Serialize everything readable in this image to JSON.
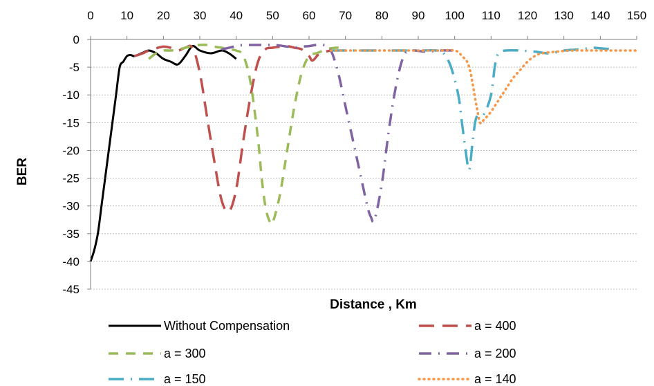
{
  "chart_data": {
    "type": "line",
    "title": "",
    "xlabel": "Distance , Km",
    "ylabel": "BER",
    "xlim": [
      0,
      150
    ],
    "ylim": [
      -45,
      0
    ],
    "xticks": [
      0,
      10,
      20,
      30,
      40,
      50,
      60,
      70,
      80,
      90,
      100,
      110,
      120,
      130,
      140,
      150
    ],
    "yticks": [
      0,
      -5,
      -10,
      -15,
      -20,
      -25,
      -30,
      -35,
      -40,
      -45
    ],
    "x_axis_position": "top",
    "grid": "horizontal dashed",
    "legend_position": "bottom",
    "series": [
      {
        "name": "Without Compensation",
        "color": "#000000",
        "dash": "solid",
        "points": [
          [
            0,
            -40
          ],
          [
            1,
            -38
          ],
          [
            2,
            -35
          ],
          [
            3,
            -30
          ],
          [
            4,
            -25
          ],
          [
            5,
            -20
          ],
          [
            6,
            -15
          ],
          [
            7,
            -10
          ],
          [
            8,
            -5
          ],
          [
            9,
            -4
          ],
          [
            10,
            -3
          ],
          [
            11,
            -2.8
          ],
          [
            12,
            -3
          ],
          [
            14,
            -2.5
          ],
          [
            16,
            -2
          ],
          [
            18,
            -2.5
          ],
          [
            20,
            -3.5
          ],
          [
            22,
            -4
          ],
          [
            24,
            -4.5
          ],
          [
            26,
            -3
          ],
          [
            28,
            -1.2
          ],
          [
            30,
            -2
          ],
          [
            33,
            -2.5
          ],
          [
            36,
            -2
          ],
          [
            38,
            -2.5
          ],
          [
            40,
            -3.5
          ]
        ]
      },
      {
        "name": "a = 400",
        "color": "#c0504d",
        "dash": "long-dash",
        "points": [
          [
            12,
            -3
          ],
          [
            14,
            -2.6
          ],
          [
            16,
            -2
          ],
          [
            18,
            -1.6
          ],
          [
            20,
            -1.3
          ],
          [
            22,
            -1.5
          ],
          [
            24,
            -2
          ],
          [
            26,
            -1.5
          ],
          [
            28,
            -1.5
          ],
          [
            30,
            -6
          ],
          [
            32,
            -14
          ],
          [
            34,
            -22
          ],
          [
            36,
            -29
          ],
          [
            38,
            -31
          ],
          [
            40,
            -27
          ],
          [
            42,
            -18
          ],
          [
            44,
            -10
          ],
          [
            46,
            -4
          ],
          [
            48,
            -1.8
          ],
          [
            50,
            -1.5
          ],
          [
            52,
            -1.3
          ],
          [
            54,
            -1.2
          ],
          [
            56,
            -1.5
          ],
          [
            58,
            -1.8
          ],
          [
            60,
            -3
          ],
          [
            61,
            -3.8
          ],
          [
            63,
            -2.5
          ],
          [
            66,
            -2
          ]
        ]
      },
      {
        "name": "a = 300",
        "color": "#9bbb59",
        "dash": "dash",
        "points": [
          [
            16,
            -3.5
          ],
          [
            18,
            -2.5
          ],
          [
            20,
            -2
          ],
          [
            22,
            -2
          ],
          [
            24,
            -1.8
          ],
          [
            26,
            -1.5
          ],
          [
            28,
            -1.2
          ],
          [
            30,
            -1
          ],
          [
            32,
            -1
          ],
          [
            34,
            -1.3
          ],
          [
            36,
            -1.5
          ],
          [
            38,
            -1.8
          ],
          [
            40,
            -2
          ],
          [
            42,
            -3
          ],
          [
            44,
            -8
          ],
          [
            46,
            -18
          ],
          [
            47,
            -25
          ],
          [
            48,
            -30
          ],
          [
            49,
            -32.5
          ],
          [
            50,
            -33
          ],
          [
            52,
            -28
          ],
          [
            54,
            -20
          ],
          [
            56,
            -12
          ],
          [
            58,
            -6
          ],
          [
            60,
            -3
          ],
          [
            62,
            -2.5
          ],
          [
            64,
            -2
          ],
          [
            66,
            -1.6
          ],
          [
            68,
            -1.5
          ],
          [
            70,
            -1.8
          ]
        ]
      },
      {
        "name": "a = 200",
        "color": "#8064a2",
        "dash": "dash-dot",
        "points": [
          [
            36,
            -1.8
          ],
          [
            38,
            -1.5
          ],
          [
            40,
            -1.2
          ],
          [
            42,
            -1
          ],
          [
            44,
            -1
          ],
          [
            46,
            -1
          ],
          [
            48,
            -1
          ],
          [
            50,
            -1
          ],
          [
            52,
            -1.1
          ],
          [
            54,
            -1.3
          ],
          [
            56,
            -1.5
          ],
          [
            58,
            -1.3
          ],
          [
            60,
            -1.2
          ],
          [
            62,
            -1
          ],
          [
            64,
            -1
          ],
          [
            66,
            -2
          ],
          [
            68,
            -6
          ],
          [
            70,
            -12
          ],
          [
            72,
            -18
          ],
          [
            74,
            -24
          ],
          [
            76,
            -30
          ],
          [
            77,
            -32
          ],
          [
            78,
            -32.5
          ],
          [
            80,
            -26
          ],
          [
            82,
            -16
          ],
          [
            84,
            -8
          ],
          [
            86,
            -3
          ],
          [
            88,
            -2
          ],
          [
            92,
            -2.2
          ],
          [
            96,
            -2
          ],
          [
            100,
            -2
          ]
        ]
      },
      {
        "name": "a = 150",
        "color": "#4bacc6",
        "dash": "long-dash-dot",
        "points": [
          [
            66,
            -2
          ],
          [
            70,
            -2
          ],
          [
            74,
            -2
          ],
          [
            80,
            -2
          ],
          [
            90,
            -2
          ],
          [
            95,
            -2
          ],
          [
            97,
            -2.5
          ],
          [
            99,
            -5
          ],
          [
            101,
            -10
          ],
          [
            102,
            -15
          ],
          [
            103,
            -20
          ],
          [
            104,
            -23.5
          ],
          [
            105,
            -18
          ],
          [
            106,
            -14
          ],
          [
            108,
            -13.5
          ],
          [
            110,
            -10
          ],
          [
            111,
            -5
          ],
          [
            112,
            -2.5
          ],
          [
            114,
            -2
          ],
          [
            118,
            -2
          ],
          [
            122,
            -2.2
          ],
          [
            126,
            -2.5
          ],
          [
            130,
            -2
          ],
          [
            134,
            -1.8
          ],
          [
            138,
            -1.5
          ],
          [
            140,
            -1.6
          ],
          [
            144,
            -1.8
          ]
        ]
      },
      {
        "name": "a = 140",
        "color": "#f79646",
        "dash": "dot",
        "points": [
          [
            66,
            -2
          ],
          [
            70,
            -2
          ],
          [
            75,
            -2
          ],
          [
            80,
            -2
          ],
          [
            85,
            -2
          ],
          [
            90,
            -2
          ],
          [
            95,
            -2
          ],
          [
            100,
            -2
          ],
          [
            102,
            -3
          ],
          [
            104,
            -5
          ],
          [
            106,
            -12
          ],
          [
            107,
            -15
          ],
          [
            108,
            -14.5
          ],
          [
            110,
            -13
          ],
          [
            112,
            -11
          ],
          [
            114,
            -9
          ],
          [
            116,
            -7
          ],
          [
            118,
            -5.5
          ],
          [
            120,
            -4
          ],
          [
            122,
            -3
          ],
          [
            124,
            -2.5
          ],
          [
            128,
            -2.2
          ],
          [
            132,
            -2
          ],
          [
            136,
            -2
          ],
          [
            140,
            -2
          ],
          [
            145,
            -2
          ],
          [
            150,
            -2
          ]
        ]
      }
    ]
  }
}
